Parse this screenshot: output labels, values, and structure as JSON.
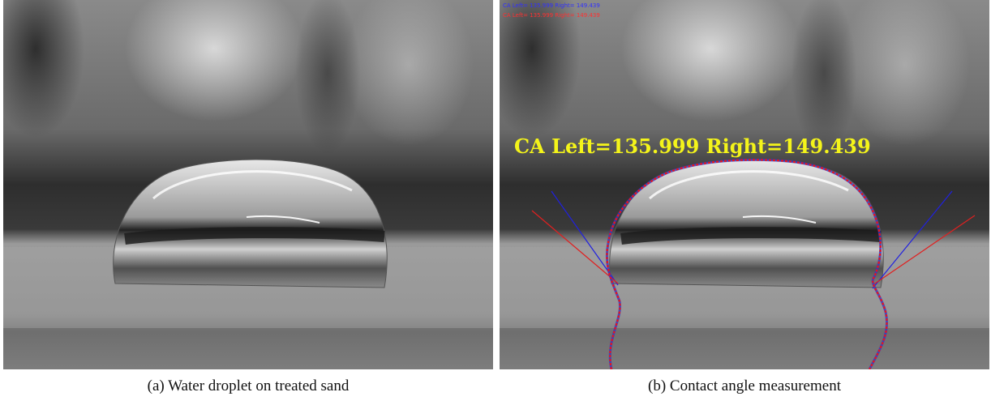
{
  "panel_a": {
    "caption": "(a) Water droplet on treated sand"
  },
  "panel_b": {
    "caption": "(b) Contact angle measurement",
    "overlay_text": "CA Left=135.999 Right=149.439",
    "tiny_line_1": "CA Left= 135.999 Right= 149.439",
    "tiny_line_2": "CA Left= 135.999 Right= 149.439"
  },
  "colors": {
    "overlay_text": "#f4f41a",
    "profile_points": "#e8141e",
    "tangent_left": "#2020e0",
    "tangent_right": "#e02020"
  }
}
